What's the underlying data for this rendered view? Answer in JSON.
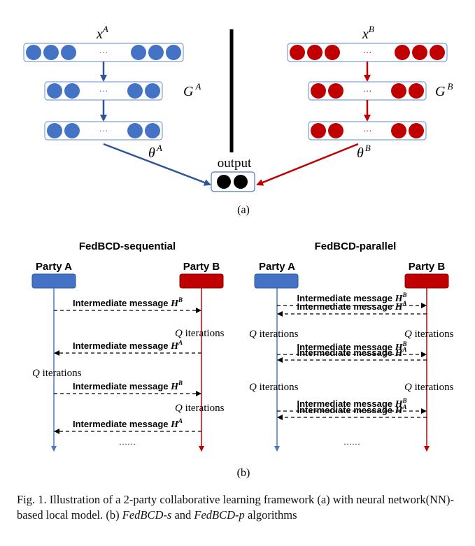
{
  "panel_a": {
    "party_a": {
      "input": "x",
      "input_sup": "A",
      "hidden": "G",
      "hidden_sup": "A",
      "param": "θ",
      "param_sup": "A",
      "node_color": "#4472c4",
      "ellipsis": "···"
    },
    "party_b": {
      "input": "x",
      "input_sup": "B",
      "hidden": "G",
      "hidden_sup": "B",
      "param": "θ",
      "param_sup": "B",
      "node_color": "#c00000",
      "ellipsis": "···"
    },
    "output_label": "output",
    "label": "(a)"
  },
  "panel_b": {
    "sequential": {
      "title": "FedBCD-sequential",
      "party_a": "Party A",
      "party_b": "Party B",
      "msg_prefix": "Intermediate message ",
      "msg_symbol": "H",
      "q": "Q",
      "iter_word": " iterations",
      "ellipsis": "……",
      "messages": [
        {
          "sup": "B",
          "dir": "right"
        },
        {
          "sup": "A",
          "dir": "left"
        },
        {
          "sup": "B",
          "dir": "right"
        },
        {
          "sup": "A",
          "dir": "left"
        }
      ]
    },
    "parallel": {
      "title": "FedBCD-parallel",
      "party_a": "Party A",
      "party_b": "Party B",
      "msg_prefix": "Intermediate message ",
      "msg_symbol": "H",
      "q": "Q",
      "iter_word": " iterations",
      "ellipsis": "……",
      "messages": [
        {
          "sup": "B",
          "dir": "right"
        },
        {
          "sup": "A",
          "dir": "left"
        },
        {
          "sup": "B",
          "dir": "right"
        },
        {
          "sup": "A",
          "dir": "left"
        },
        {
          "sup": "B",
          "dir": "right"
        },
        {
          "sup": "A",
          "dir": "left"
        }
      ]
    },
    "label": "(b)"
  },
  "caption": {
    "part1": "Fig. 1.  Illustration of a 2-party collaborative learning framework (a) with neural network(NN)-based local model. (b) ",
    "alg_s": "FedBCD-s",
    "and": " and ",
    "alg_p": "FedBCD-p",
    "part2": " algorithms"
  }
}
